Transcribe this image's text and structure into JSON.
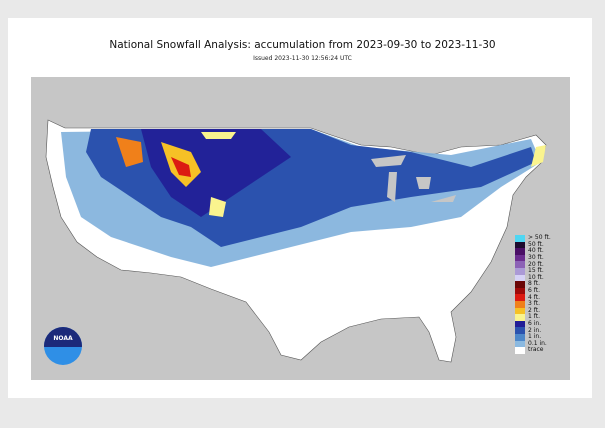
{
  "title": "National Snowfall Analysis: accumulation from 2023-09-30 to 2023-11-30",
  "issued": "Issued 2023-11-30 12:56:24 UTC",
  "logo_text": "NOAA",
  "legend": [
    {
      "label": "> 50 ft.",
      "color": "#4fd6f2"
    },
    {
      "label": "50 ft.",
      "color": "#1c0b2e"
    },
    {
      "label": "40 ft.",
      "color": "#4a0f66"
    },
    {
      "label": "30 ft.",
      "color": "#6b2d8f"
    },
    {
      "label": "20 ft.",
      "color": "#8c62b6"
    },
    {
      "label": "15 ft.",
      "color": "#ab9ad6"
    },
    {
      "label": "10 ft.",
      "color": "#d6d2f6"
    },
    {
      "label": "8 ft.",
      "color": "#6a0606"
    },
    {
      "label": "6 ft.",
      "color": "#9e0a0a"
    },
    {
      "label": "4 ft.",
      "color": "#dc1a12"
    },
    {
      "label": "3 ft.",
      "color": "#f0801a"
    },
    {
      "label": "2 ft.",
      "color": "#f6c126"
    },
    {
      "label": "1 ft.",
      "color": "#faf48e"
    },
    {
      "label": "6 in.",
      "color": "#211d96"
    },
    {
      "label": "2 in.",
      "color": "#2b52ae"
    },
    {
      "label": "1 in.",
      "color": "#4d87c9"
    },
    {
      "label": "0.1 in.",
      "color": "#8bb9e0"
    },
    {
      "label": "trace",
      "color": "#ffffff"
    }
  ]
}
